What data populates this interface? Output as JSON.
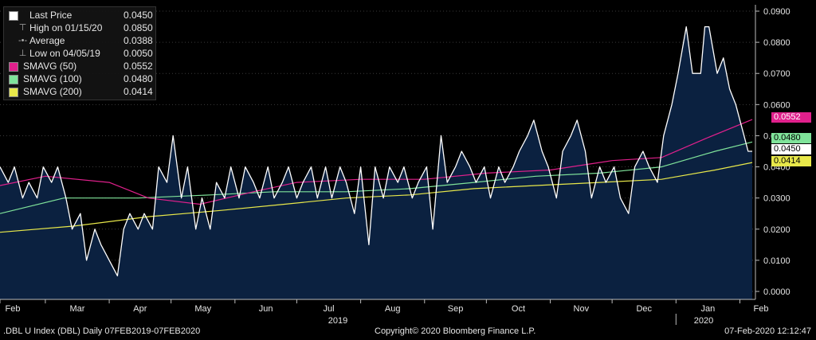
{
  "legend": {
    "last_price_label": "Last Price",
    "last_price_value": "0.0450",
    "high_label": "High on 01/15/20",
    "high_value": "0.0850",
    "average_label": "Average",
    "average_value": "0.0388",
    "low_label": "Low on 04/05/19",
    "low_value": "0.0050",
    "sma50_label": "SMAVG (50)",
    "sma50_value": "0.0552",
    "sma100_label": "SMAVG (100)",
    "sma100_value": "0.0480",
    "sma200_label": "SMAVG (200)",
    "sma200_value": "0.0414"
  },
  "value_tags": {
    "sma50": "0.0552",
    "sma100": "0.0480",
    "last": "0.0450",
    "sma200": "0.0414"
  },
  "footer": {
    "left": ".DBL U Index (DBL)  Daily 07FEB2019-07FEB2020",
    "center": "Copyright© 2020 Bloomberg Finance L.P.",
    "right": "07-Feb-2020 12:12:47"
  },
  "colors": {
    "background": "#000000",
    "area_fill": "#0b2140",
    "last_price": "#ffffff",
    "sma50": "#e0208c",
    "sma100": "#7fe39a",
    "sma200": "#e8e84a"
  },
  "chart_data": {
    "type": "line",
    "title": "",
    "xlabel": "",
    "ylabel": "",
    "ylim": [
      0.0,
      0.09
    ],
    "yticks": [
      "0.0000",
      "0.0100",
      "0.0200",
      "0.0300",
      "0.0400",
      "0.0500",
      "0.0600",
      "0.0700",
      "0.0800",
      "0.0900"
    ],
    "x_month_labels": [
      "Feb",
      "Mar",
      "Apr",
      "May",
      "Jun",
      "Jul",
      "Aug",
      "Sep",
      "Oct",
      "Nov",
      "Dec",
      "Jan",
      "Feb"
    ],
    "x_year_labels": [
      "2019",
      "2020"
    ],
    "legend_position": "top-left",
    "grid": true,
    "series": [
      {
        "name": "Last Price",
        "style": "area",
        "x": [
          "2019-02-07",
          "2019-02-11",
          "2019-02-14",
          "2019-02-18",
          "2019-02-21",
          "2019-02-25",
          "2019-02-28",
          "2019-03-04",
          "2019-03-07",
          "2019-03-11",
          "2019-03-14",
          "2019-03-18",
          "2019-03-21",
          "2019-03-25",
          "2019-03-28",
          "2019-04-01",
          "2019-04-05",
          "2019-04-08",
          "2019-04-11",
          "2019-04-15",
          "2019-04-18",
          "2019-04-22",
          "2019-04-25",
          "2019-04-29",
          "2019-05-02",
          "2019-05-06",
          "2019-05-09",
          "2019-05-13",
          "2019-05-16",
          "2019-05-20",
          "2019-05-23",
          "2019-05-27",
          "2019-05-30",
          "2019-06-03",
          "2019-06-06",
          "2019-06-10",
          "2019-06-13",
          "2019-06-17",
          "2019-06-20",
          "2019-06-24",
          "2019-06-27",
          "2019-07-01",
          "2019-07-04",
          "2019-07-08",
          "2019-07-11",
          "2019-07-15",
          "2019-07-18",
          "2019-07-22",
          "2019-07-25",
          "2019-07-29",
          "2019-08-01",
          "2019-08-05",
          "2019-08-08",
          "2019-08-12",
          "2019-08-15",
          "2019-08-19",
          "2019-08-22",
          "2019-08-26",
          "2019-08-29",
          "2019-09-02",
          "2019-09-05",
          "2019-09-09",
          "2019-09-12",
          "2019-09-16",
          "2019-09-19",
          "2019-09-23",
          "2019-09-26",
          "2019-09-30",
          "2019-10-03",
          "2019-10-07",
          "2019-10-10",
          "2019-10-14",
          "2019-10-17",
          "2019-10-21",
          "2019-10-24",
          "2019-10-28",
          "2019-10-31",
          "2019-11-04",
          "2019-11-07",
          "2019-11-11",
          "2019-11-14",
          "2019-11-18",
          "2019-11-21",
          "2019-11-25",
          "2019-11-28",
          "2019-12-02",
          "2019-12-05",
          "2019-12-09",
          "2019-12-12",
          "2019-12-16",
          "2019-12-19",
          "2019-12-23",
          "2019-12-26",
          "2019-12-30",
          "2020-01-02",
          "2020-01-06",
          "2020-01-09",
          "2020-01-13",
          "2020-01-15",
          "2020-01-17",
          "2020-01-21",
          "2020-01-24",
          "2020-01-27",
          "2020-01-30",
          "2020-02-03",
          "2020-02-05",
          "2020-02-07"
        ],
        "values": [
          0.04,
          0.035,
          0.04,
          0.03,
          0.035,
          0.03,
          0.04,
          0.035,
          0.04,
          0.03,
          0.02,
          0.025,
          0.01,
          0.02,
          0.015,
          0.01,
          0.005,
          0.02,
          0.025,
          0.02,
          0.025,
          0.02,
          0.04,
          0.035,
          0.05,
          0.03,
          0.04,
          0.02,
          0.03,
          0.02,
          0.035,
          0.03,
          0.04,
          0.03,
          0.04,
          0.035,
          0.03,
          0.04,
          0.03,
          0.035,
          0.04,
          0.03,
          0.035,
          0.04,
          0.03,
          0.04,
          0.03,
          0.04,
          0.035,
          0.025,
          0.04,
          0.015,
          0.04,
          0.03,
          0.04,
          0.035,
          0.04,
          0.03,
          0.035,
          0.04,
          0.02,
          0.05,
          0.035,
          0.04,
          0.045,
          0.04,
          0.035,
          0.04,
          0.03,
          0.04,
          0.035,
          0.04,
          0.045,
          0.05,
          0.055,
          0.045,
          0.04,
          0.03,
          0.045,
          0.05,
          0.055,
          0.045,
          0.03,
          0.04,
          0.035,
          0.04,
          0.03,
          0.025,
          0.04,
          0.045,
          0.04,
          0.035,
          0.05,
          0.06,
          0.07,
          0.085,
          0.07,
          0.07,
          0.085,
          0.085,
          0.07,
          0.075,
          0.065,
          0.06,
          0.05,
          0.045,
          0.045
        ]
      },
      {
        "name": "SMAVG (50)",
        "x": [
          "2019-02-07",
          "2019-03-01",
          "2019-04-01",
          "2019-04-20",
          "2019-05-15",
          "2019-06-10",
          "2019-07-01",
          "2019-08-01",
          "2019-09-01",
          "2019-10-01",
          "2019-11-01",
          "2019-12-01",
          "2019-12-25",
          "2020-01-15",
          "2020-02-07"
        ],
        "values": [
          0.034,
          0.037,
          0.035,
          0.03,
          0.028,
          0.032,
          0.035,
          0.036,
          0.036,
          0.038,
          0.039,
          0.042,
          0.043,
          0.049,
          0.0552
        ]
      },
      {
        "name": "SMAVG (100)",
        "x": [
          "2019-02-07",
          "2019-03-10",
          "2019-04-15",
          "2019-05-20",
          "2019-06-20",
          "2019-07-25",
          "2019-08-25",
          "2019-09-25",
          "2019-10-25",
          "2019-11-25",
          "2019-12-25",
          "2020-01-20",
          "2020-02-07"
        ],
        "values": [
          0.025,
          0.03,
          0.03,
          0.031,
          0.032,
          0.032,
          0.033,
          0.035,
          0.037,
          0.038,
          0.04,
          0.045,
          0.048
        ]
      },
      {
        "name": "SMAVG (200)",
        "x": [
          "2019-02-07",
          "2019-03-15",
          "2019-04-20",
          "2019-05-25",
          "2019-06-25",
          "2019-07-25",
          "2019-08-25",
          "2019-09-25",
          "2019-10-25",
          "2019-11-25",
          "2019-12-25",
          "2020-01-20",
          "2020-02-07"
        ],
        "values": [
          0.019,
          0.021,
          0.024,
          0.026,
          0.028,
          0.03,
          0.031,
          0.033,
          0.034,
          0.035,
          0.036,
          0.039,
          0.0414
        ]
      }
    ]
  }
}
